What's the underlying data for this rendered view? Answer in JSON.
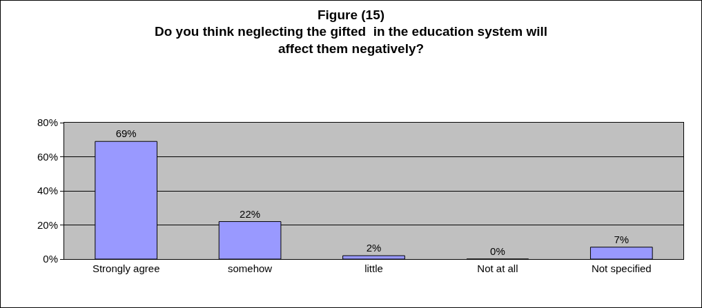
{
  "chart_data": {
    "type": "bar",
    "title": "Figure (15)\nDo you think neglecting the gifted  in the education system will\naffect them negatively?",
    "categories": [
      "Strongly agree",
      "somehow",
      "little",
      "Not at all",
      "Not specified"
    ],
    "values": [
      69,
      22,
      2,
      0,
      7
    ],
    "value_labels": [
      "69%",
      "22%",
      "2%",
      "0%",
      "7%"
    ],
    "color": "#9999ff",
    "ylim": [
      0,
      80
    ],
    "yticks": [
      {
        "value": 0,
        "label": "0%"
      },
      {
        "value": 20,
        "label": "20%"
      },
      {
        "value": 40,
        "label": "40%"
      },
      {
        "value": 60,
        "label": "60%"
      },
      {
        "value": 80,
        "label": "80%"
      }
    ],
    "grid": "y",
    "legend": false
  }
}
